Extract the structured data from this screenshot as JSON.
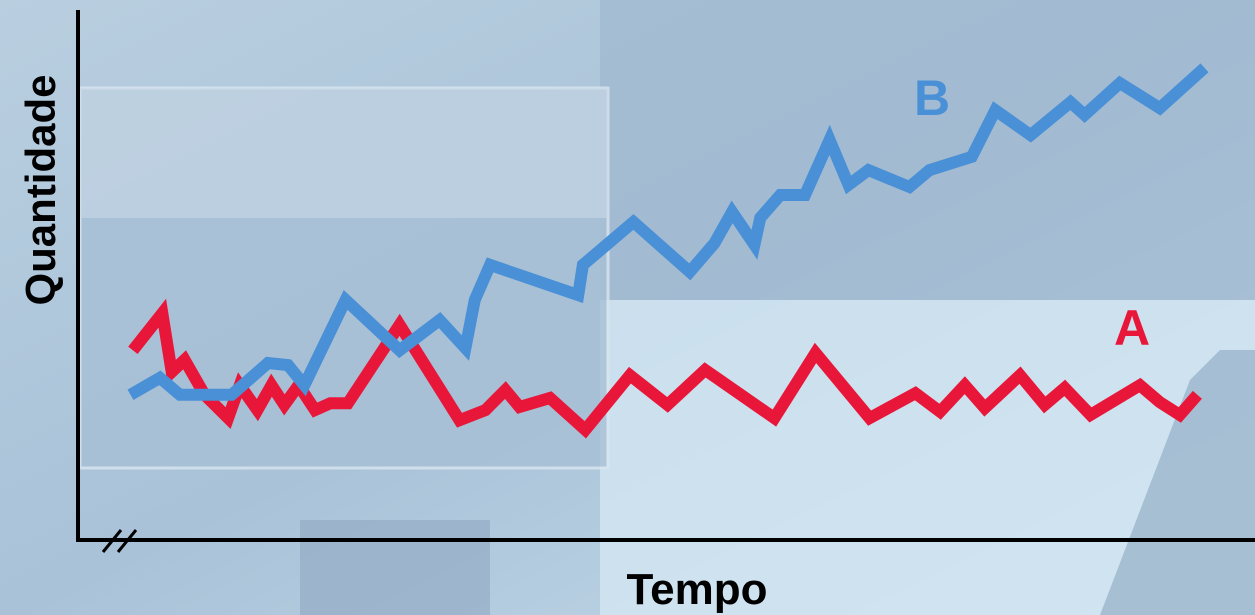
{
  "chart_data": {
    "type": "line",
    "xlabel": "Tempo",
    "ylabel": "Quantidade",
    "xlim": [
      0,
      100
    ],
    "ylim": [
      0,
      100
    ],
    "series": [
      {
        "name": "A",
        "color": "#e8173a",
        "x": [
          4.5,
          7.0,
          7.8,
          8.9,
          10.6,
          12.6,
          13.6,
          15.1,
          16.3,
          17.4,
          18.6,
          20.0,
          21.3,
          22.8,
          27.2,
          32.3,
          34.5,
          36.2,
          37.4,
          40.0,
          43.0,
          46.8,
          50.0,
          53.2,
          59.1,
          62.6,
          67.2,
          71.1,
          73.2,
          75.3,
          77.0,
          80.0,
          82.1,
          83.8,
          86.0,
          90.2,
          91.9,
          93.6,
          95.1
        ],
        "values": [
          35.8,
          42.8,
          31.7,
          34.0,
          27.4,
          23.0,
          29.2,
          24.5,
          29.2,
          25.5,
          29.2,
          24.5,
          25.8,
          25.8,
          40.6,
          22.6,
          24.5,
          28.3,
          25.1,
          26.8,
          20.8,
          31.1,
          25.5,
          32.1,
          23.0,
          35.3,
          23.0,
          27.7,
          24.2,
          29.2,
          24.9,
          31.1,
          25.5,
          28.7,
          23.6,
          29.2,
          26.0,
          23.6,
          27.4
        ]
      },
      {
        "name": "B",
        "color": "#4a90d6",
        "x": [
          4.3,
          6.8,
          8.5,
          12.9,
          16.0,
          17.7,
          19.1,
          22.6,
          27.2,
          30.6,
          32.8,
          33.6,
          34.9,
          42.4,
          42.8,
          47.1,
          51.9,
          54.0,
          55.5,
          57.4,
          57.9,
          59.6,
          61.7,
          63.8,
          65.4,
          67.1,
          70.6,
          72.3,
          75.9,
          77.9,
          80.9,
          84.3,
          85.5,
          88.5,
          91.9,
          95.7
        ],
        "values": [
          27.4,
          30.6,
          27.4,
          27.4,
          33.4,
          33.0,
          29.2,
          45.3,
          35.8,
          41.5,
          36.2,
          45.3,
          51.9,
          46.2,
          51.9,
          60.0,
          50.6,
          56.0,
          61.9,
          55.7,
          60.8,
          65.1,
          65.1,
          75.5,
          67.0,
          69.8,
          66.6,
          69.8,
          72.3,
          81.1,
          76.4,
          82.6,
          80.2,
          86.2,
          81.5,
          89.1
        ]
      }
    ]
  }
}
